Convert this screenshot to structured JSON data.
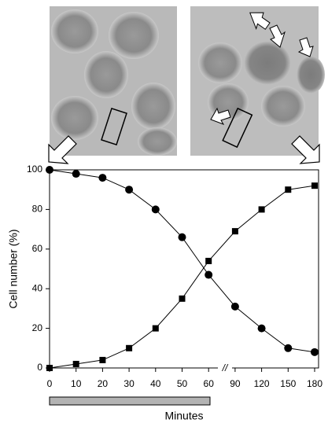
{
  "chart_data": {
    "type": "line",
    "categories": [
      "0",
      "10",
      "20",
      "30",
      "40",
      "50",
      "60",
      "90",
      "120",
      "150",
      "180"
    ],
    "series": [
      {
        "color": "#000000",
        "marker": "circle",
        "values": [
          100,
          98,
          96,
          90,
          80,
          66,
          47,
          31,
          20,
          10,
          8
        ]
      },
      {
        "color": "#000000",
        "marker": "square",
        "values": [
          0,
          2,
          4,
          10,
          20,
          35,
          54,
          69,
          80,
          90,
          92
        ]
      }
    ],
    "ylim": [
      0,
      100
    ],
    "yticks": [
      0,
      20,
      40,
      60,
      80,
      100
    ],
    "y_label": "Cell number (%)",
    "x_label": "Minutes",
    "x_break_label": "//",
    "grid": false
  }
}
